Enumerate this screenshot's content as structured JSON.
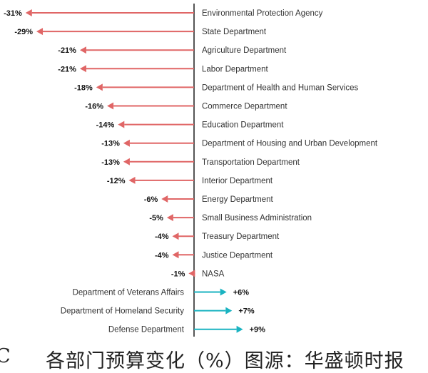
{
  "chart_data": {
    "type": "bar",
    "subtype": "diverging-arrow",
    "title": "",
    "xlabel": "",
    "ylabel": "",
    "xlim": [
      -31,
      9
    ],
    "grid": false,
    "legend": null,
    "unit": "%",
    "categories": [
      "Environmental Protection Agency",
      "State Department",
      "Agriculture Department",
      "Labor Department",
      "Department of Health and Human Services",
      "Commerce Department",
      "Education Department",
      "Department of Housing and Urban Development",
      "Transportation Department",
      "Interior Department",
      "Energy Department",
      "Small Business Administration",
      "Treasury Department",
      "Justice Department",
      "NASA",
      "Department of Veterans Affairs",
      "Department of Homeland Security",
      "Defense Department"
    ],
    "values": [
      -31,
      -29,
      -21,
      -21,
      -18,
      -16,
      -14,
      -13,
      -13,
      -12,
      -6,
      -5,
      -4,
      -4,
      -1,
      6,
      7,
      9
    ],
    "value_labels": [
      "-31%",
      "-29%",
      "-21%",
      "-21%",
      "-18%",
      "-16%",
      "-14%",
      "-13%",
      "-13%",
      "-12%",
      "-6%",
      "-5%",
      "-4%",
      "-4%",
      "-1%",
      "+6%",
      "+7%",
      "+9%"
    ],
    "colors": {
      "negative": "#e06666",
      "positive": "#1ab3c1",
      "axis": "#555555"
    }
  },
  "caption": {
    "figure_label": "C",
    "text": "各部门预算变化（%）图源：华盛顿时报"
  }
}
